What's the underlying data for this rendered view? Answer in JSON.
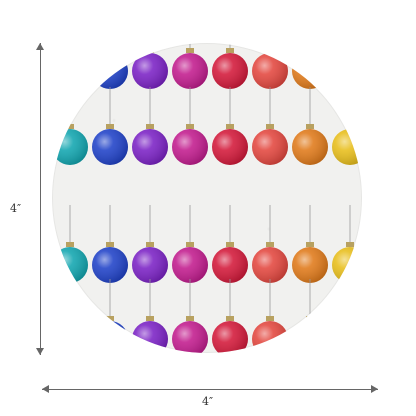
{
  "dimensions": {
    "height_label": "4″",
    "width_label": "4″"
  },
  "ornament_rows": [
    {
      "colors": [
        "#2042c8",
        "#7b22c5",
        "#c21c8e",
        "#d3193a",
        "#e3473f",
        "#e07a1a"
      ]
    },
    {
      "colors": [
        "#12a6b0",
        "#2042c8",
        "#7b22c5",
        "#c21c8e",
        "#d3193a",
        "#e3473f",
        "#e07a1a",
        "#e8be1b"
      ]
    },
    {
      "colors": [
        "#12a6b0",
        "#2042c8",
        "#7b22c5",
        "#c21c8e",
        "#d3193a",
        "#e3473f",
        "#e07a1a",
        "#e8be1b"
      ]
    },
    {
      "colors": [
        "#2042c8",
        "#7b22c5",
        "#c21c8e",
        "#d3193a",
        "#e3473f",
        "#e07a1a"
      ]
    }
  ],
  "colors": {
    "background": "#ffffff",
    "coaster": "#f1f1ef",
    "dimension_line": "#666666"
  }
}
